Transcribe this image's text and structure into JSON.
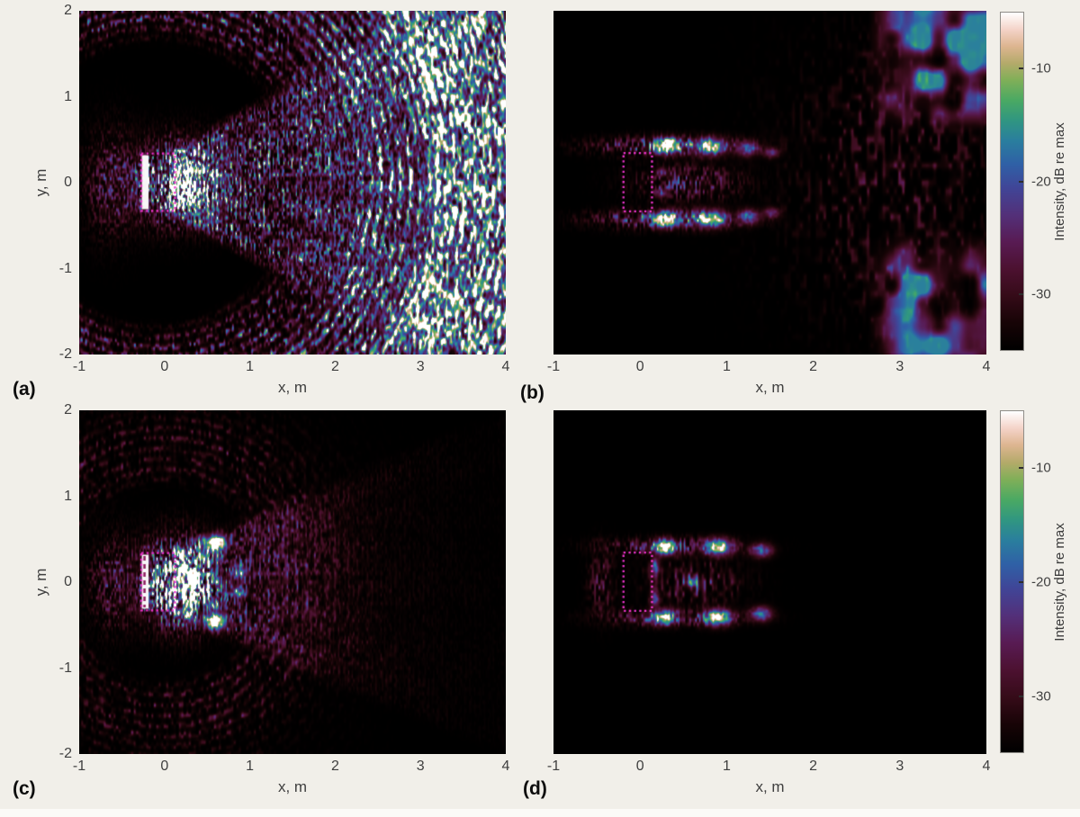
{
  "page": {
    "background": "#f1efe9",
    "text_color": "#3f3f3f",
    "letter_color": "#0d0d0d",
    "footer_strip_color": "#fbfaf7"
  },
  "chart_data": {
    "type": "heatmap",
    "layout": "2x2 grid of acoustic intensity field maps, each 5 m x 4 m, with a shared vertical colorbar per row; dark cubehelix-style colormap (black-maroon-purple-blue-teal-green-tan-pink-white)",
    "xlabel": "x, m",
    "ylabel": "y, m",
    "x_range": [
      -1,
      4
    ],
    "y_range": [
      -2,
      2
    ],
    "xticks": [
      -1,
      0,
      1,
      2,
      3,
      4
    ],
    "yticks": [
      2,
      1,
      0,
      -1,
      -2
    ],
    "aperture_color": "#ee33cc",
    "colorbar": {
      "label": "Intensity, dB re max",
      "ticks": [
        -10,
        -20,
        -30
      ],
      "range_db": [
        -35,
        -5
      ],
      "colormap_stops": [
        [
          0.0,
          "#000000"
        ],
        [
          0.08,
          "#170406"
        ],
        [
          0.16,
          "#350b18"
        ],
        [
          0.24,
          "#4c1130"
        ],
        [
          0.32,
          "#581b53"
        ],
        [
          0.4,
          "#533079"
        ],
        [
          0.48,
          "#404597"
        ],
        [
          0.55,
          "#2f60a6"
        ],
        [
          0.62,
          "#2a7e9e"
        ],
        [
          0.68,
          "#309681"
        ],
        [
          0.74,
          "#4aa963"
        ],
        [
          0.8,
          "#80af58"
        ],
        [
          0.85,
          "#b4aa6a"
        ],
        [
          0.9,
          "#ddb590"
        ],
        [
          0.95,
          "#f4d3c8"
        ],
        [
          1.0,
          "#ffffff"
        ]
      ]
    },
    "panels": [
      {
        "id": "a",
        "label": "(a)",
        "show_y_axis": true,
        "description": "Full field: bright white source bars near x=-0.25 with dotted magenta aperture box, speckled beam fan, and dense teal-green circular arc sidelobes filling the right side out to x=4",
        "features": [
          {
            "type": "speckle",
            "amp": 0.3,
            "cx": -0.62,
            "cy": 0,
            "sx": 0.3,
            "sy": 0.55,
            "fx": 55,
            "fy": 22,
            "pow": 2.0,
            "seed": 3
          },
          {
            "type": "speckle",
            "amp": 1.3,
            "cx": 0.15,
            "cy": 0,
            "sx": 0.45,
            "sy": 0.4,
            "fx": 58,
            "fy": 24,
            "pow": 1.65,
            "fringe": 0.05,
            "seed": 11
          },
          {
            "type": "cone",
            "amp": 0.95,
            "y0": 0.3,
            "slope": 0.55,
            "xstart": 0.05,
            "xdecay": 2.6,
            "fx": 55,
            "fy": 22,
            "pow": 1.8,
            "fringe": 0.055,
            "spokes": 7,
            "seed": 19
          },
          {
            "type": "arcs",
            "amp": 0.5,
            "cx": -0.1,
            "cy": 0,
            "r0": 1.55,
            "rrise": 0.45,
            "rmax": 2.6,
            "rfade": 0.5,
            "ringPeriod": 0.12,
            "spokes": 9,
            "fx": 40,
            "fy": 18,
            "pow": 2.1,
            "seed": 29
          },
          {
            "type": "arcs",
            "amp": 0.65,
            "cx": -0.1,
            "cy": 0,
            "r0": 2.25,
            "rrise": 0.4,
            "ringPeriod": 0.115,
            "spokes": 8,
            "fx": 34,
            "fy": 15,
            "pow": 1.8,
            "seed": 37
          },
          {
            "type": "arcs",
            "amp": 1.05,
            "cx": -0.1,
            "cy": 0,
            "r0": 3.0,
            "rrise": 0.4,
            "ringPeriod": 0.11,
            "spokes": 6,
            "fx": 28,
            "fy": 13,
            "pow": 1.55,
            "seed": 41
          }
        ],
        "overlays": {
          "white_bar": {
            "x0": -0.265,
            "x1": -0.185,
            "y0": -0.315,
            "y1": 0.315
          },
          "box": {
            "x0": -0.27,
            "x1": 0.125,
            "y0": -0.335,
            "y1": 0.335
          }
        }
      },
      {
        "id": "b",
        "label": "(b)",
        "show_y_axis": false,
        "description": "Sparse field: dotted magenta aperture box with symmetric pairs of green-blue lobes to its right out to x=1.5, faint magenta streak rows, and coarse magenta-blue noise patches in the far-right corners",
        "features": [
          {
            "type": "speckle",
            "amp": 0.5,
            "cx": 0.3,
            "cy": 0.43,
            "sx": 0.75,
            "sy": 0.1,
            "fx": 45,
            "fy": 18,
            "pow": 1.8,
            "seed": 5
          },
          {
            "type": "speckle",
            "amp": 0.5,
            "cx": 0.3,
            "cy": -0.43,
            "sx": 0.75,
            "sy": 0.1,
            "fx": 45,
            "fy": 18,
            "pow": 1.8,
            "seed": 7
          },
          {
            "type": "speckle",
            "amp": 0.34,
            "cx": 0.55,
            "cy": 0,
            "sx": 0.55,
            "sy": 0.18,
            "fx": 45,
            "fy": 18,
            "pow": 2.0,
            "seed": 9
          },
          {
            "type": "blobs",
            "list": [
              [
                0.3,
                0.43,
                0.14,
                0.085,
                0.9
              ],
              [
                0.3,
                -0.43,
                0.14,
                0.085,
                0.9
              ],
              [
                0.8,
                0.42,
                0.18,
                0.095,
                0.7
              ],
              [
                0.8,
                -0.42,
                0.18,
                0.095,
                0.7
              ],
              [
                1.25,
                0.4,
                0.12,
                0.08,
                0.5
              ],
              [
                1.25,
                -0.4,
                0.12,
                0.08,
                0.5
              ],
              [
                1.52,
                0.35,
                0.09,
                0.06,
                0.35
              ],
              [
                1.52,
                -0.35,
                0.09,
                0.06,
                0.35
              ],
              [
                0.25,
                0.12,
                0.07,
                0.05,
                0.32
              ],
              [
                0.25,
                -0.12,
                0.07,
                0.05,
                0.32
              ]
            ]
          },
          {
            "type": "corner",
            "amp": 0.5,
            "x0": 2.6,
            "xr": 0.55,
            "y0": 0.55,
            "yr": 0.5,
            "fx": 5.5,
            "fy": 4.2,
            "pow": 1.6,
            "seed": 23
          },
          {
            "type": "speckle",
            "amp": 0.17,
            "cx": 2.9,
            "cy": 0,
            "sx": 1.1,
            "sy": 1.5,
            "fx": 22,
            "fy": 10,
            "pow": 3.4,
            "seed": 25
          }
        ],
        "overlays": {
          "box": {
            "x0": -0.19,
            "x1": 0.14,
            "y0": -0.34,
            "y1": 0.34
          }
        }
      },
      {
        "id": "c",
        "label": "(c)",
        "show_y_axis": true,
        "description": "Full simulated field: very bright white source bars with dashed line, intense symmetric speckle beam that decays to black by x = 2.5, no far-field arcs",
        "features": [
          {
            "type": "speckle",
            "amp": 0.28,
            "cx": -0.6,
            "cy": 0,
            "sx": 0.28,
            "sy": 0.5,
            "fx": 55,
            "fy": 22,
            "pow": 2.1,
            "seed": 31
          },
          {
            "type": "speckle",
            "amp": 1.55,
            "cx": 0.18,
            "cy": 0,
            "sx": 0.4,
            "sy": 0.42,
            "fx": 55,
            "fy": 22,
            "pow": 1.55,
            "fringe": 0.05,
            "seed": 33
          },
          {
            "type": "cone",
            "amp": 0.95,
            "y0": 0.32,
            "slope": 0.42,
            "xstart": 0.1,
            "xdecay": 1.0,
            "fx": 50,
            "fy": 20,
            "pow": 1.7,
            "fringe": 0.055,
            "spokes": 6,
            "seed": 35
          },
          {
            "type": "arcs",
            "amp": 0.22,
            "cx": 0,
            "cy": 0,
            "r0": 1.05,
            "rrise": 0.3,
            "rmax": 1.8,
            "rfade": 0.35,
            "ringPeriod": 0.12,
            "spokes": 8,
            "fx": 34,
            "fy": 16,
            "pow": 2.2,
            "seed": 39
          },
          {
            "type": "blobs",
            "list": [
              [
                0.6,
                0.46,
                0.1,
                0.08,
                1.25
              ],
              [
                0.6,
                -0.46,
                0.1,
                0.08,
                1.25
              ],
              [
                0.33,
                0.0,
                0.06,
                0.1,
                0.9
              ],
              [
                0.88,
                0.12,
                0.08,
                0.06,
                0.5
              ],
              [
                0.88,
                -0.12,
                0.08,
                0.06,
                0.5
              ]
            ]
          }
        ],
        "overlays": {
          "white_bar": {
            "x0": -0.265,
            "x1": -0.185,
            "y0": -0.315,
            "y1": 0.315
          },
          "inner_dash": {
            "x": -0.233,
            "y0": -0.3,
            "y1": 0.3
          },
          "box": {
            "x0": -0.27,
            "x1": 0.125,
            "y0": -0.335,
            "y1": 0.335
          }
        }
      },
      {
        "id": "d",
        "label": "(d)",
        "show_y_axis": false,
        "description": "Sparse simulated field: dotted magenta aperture box with symmetric green lobe pairs and faint chevron texture out to x = 1.6, black elsewhere",
        "features": [
          {
            "type": "speckle",
            "amp": 0.36,
            "cx": 0.35,
            "cy": 0.42,
            "sx": 0.7,
            "sy": 0.09,
            "fx": 45,
            "fy": 18,
            "pow": 1.9,
            "seed": 43
          },
          {
            "type": "speckle",
            "amp": 0.36,
            "cx": 0.35,
            "cy": -0.42,
            "sx": 0.7,
            "sy": 0.09,
            "fx": 45,
            "fy": 18,
            "pow": 1.9,
            "seed": 45
          },
          {
            "type": "speckle",
            "amp": 0.32,
            "cx": 0.62,
            "cy": 0,
            "sx": 0.5,
            "sy": 0.24,
            "fx": 32,
            "fy": 14,
            "pow": 1.9,
            "fringe": 0.08,
            "seed": 47
          },
          {
            "type": "speckle",
            "amp": 0.22,
            "cx": -0.45,
            "cy": 0,
            "sx": 0.14,
            "sy": 0.35,
            "fx": 40,
            "fy": 16,
            "pow": 2.2,
            "seed": 49
          },
          {
            "type": "blobs",
            "list": [
              [
                0.28,
                0.41,
                0.12,
                0.08,
                0.95
              ],
              [
                0.28,
                -0.41,
                0.12,
                0.08,
                0.95
              ],
              [
                0.9,
                0.41,
                0.16,
                0.09,
                0.85
              ],
              [
                0.9,
                -0.41,
                0.16,
                0.09,
                0.85
              ],
              [
                1.4,
                0.37,
                0.12,
                0.08,
                0.55
              ],
              [
                1.4,
                -0.37,
                0.12,
                0.08,
                0.55
              ],
              [
                0.17,
                0.18,
                0.05,
                0.1,
                0.48
              ],
              [
                0.17,
                -0.18,
                0.05,
                0.1,
                0.48
              ],
              [
                0.6,
                0.0,
                0.08,
                0.07,
                0.4
              ]
            ]
          }
        ],
        "overlays": {
          "box": {
            "x0": -0.19,
            "x1": 0.14,
            "y0": -0.34,
            "y1": 0.34
          }
        }
      }
    ]
  }
}
